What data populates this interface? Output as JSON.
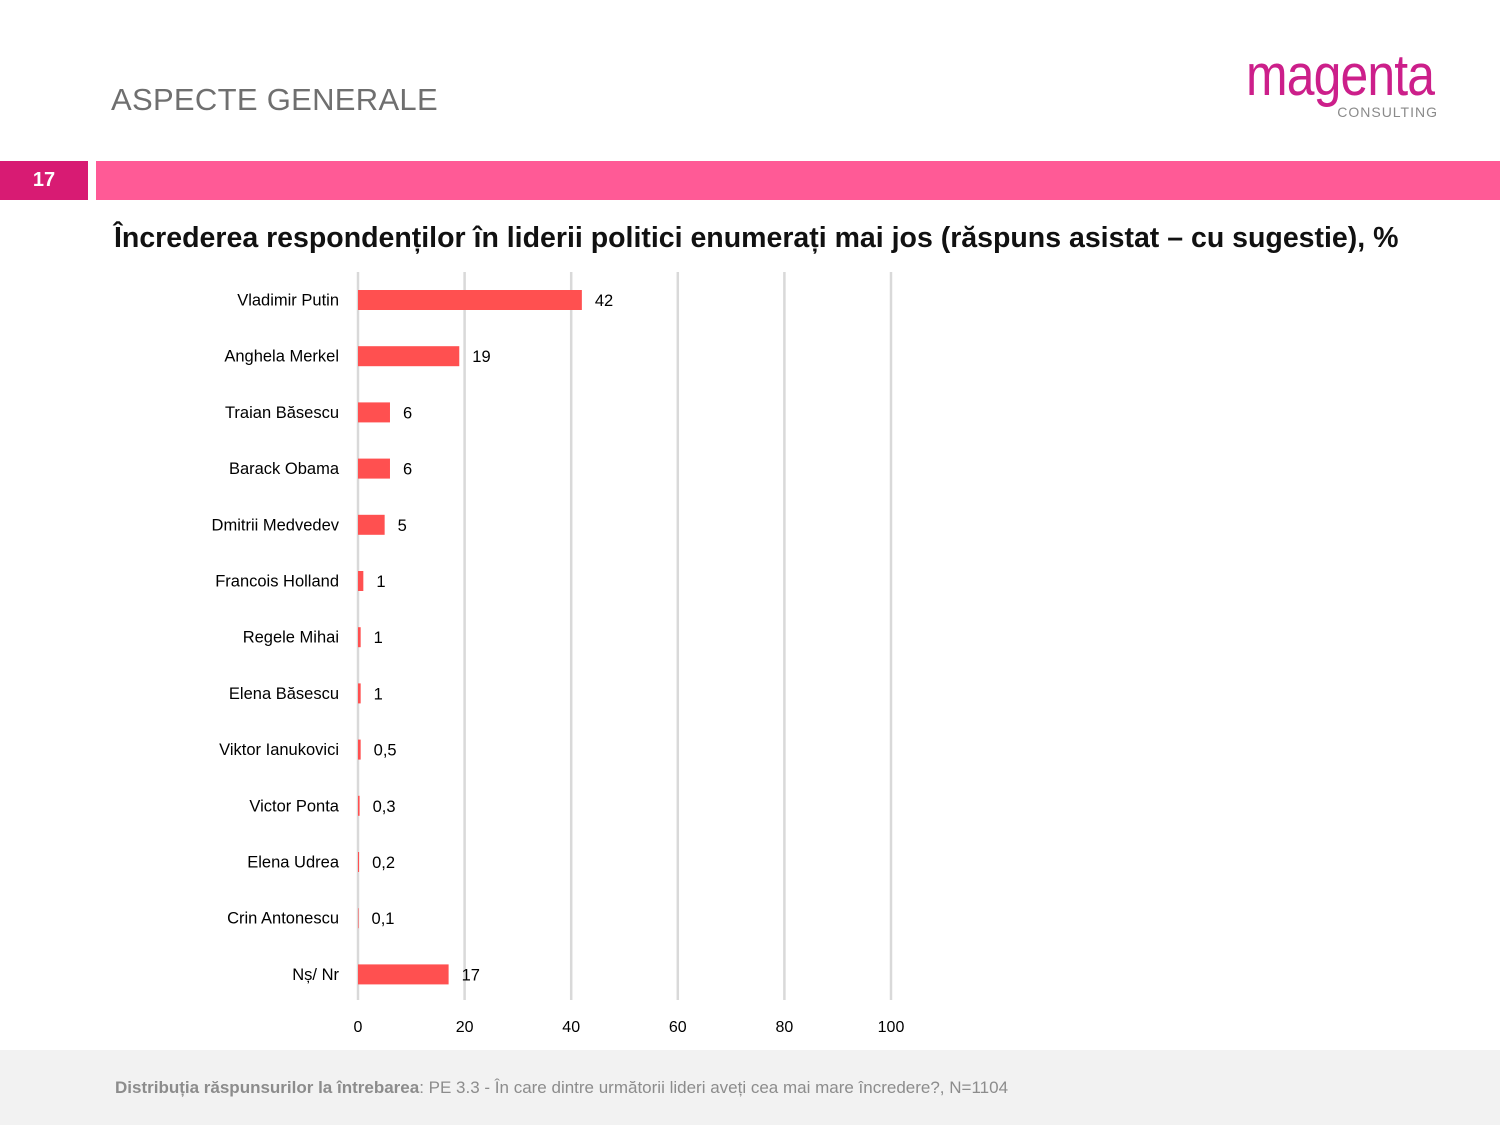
{
  "header": {
    "section_title": "ASPECTE GENERALE",
    "logo_name": "magenta",
    "logo_sub": "CONSULTING",
    "page_number": "17"
  },
  "colors": {
    "bar": "#ff5050",
    "accent": "#ff5a96",
    "page_badge": "#d81b73",
    "logo": "#cc1f8a",
    "grid": "#d9d9d9"
  },
  "chart_data": {
    "type": "bar",
    "orientation": "horizontal",
    "title": "Încrederea respondenților în liderii politici enumerați mai jos (răspuns asistat – cu sugestie), %",
    "categories": [
      "Vladimir Putin",
      "Anghela Merkel",
      "Traian Băsescu",
      "Barack Obama",
      "Dmitrii Medvedev",
      "Francois Holland",
      "Regele Mihai",
      "Elena Băsescu",
      "Viktor Ianukovici",
      "Victor Ponta",
      "Elena Udrea",
      "Crin Antonescu",
      "Nș/ Nr"
    ],
    "values": [
      42,
      19,
      6,
      6,
      5,
      1,
      0.5,
      0.5,
      0.5,
      0.3,
      0.2,
      0.1,
      17
    ],
    "data_labels": [
      "42",
      "19",
      "6",
      "6",
      "5",
      "1",
      "1",
      "1",
      "0,5",
      "0,3",
      "0,2",
      "0,1",
      "17"
    ],
    "xlim": [
      0,
      100
    ],
    "xticks": [
      "0",
      "20",
      "40",
      "60",
      "80",
      "100"
    ],
    "xtick_values": [
      0,
      20,
      40,
      60,
      80,
      100
    ],
    "grid": true,
    "legend": "none"
  },
  "footer": {
    "label": "Distribuția răspunsurilor la întrebarea",
    "text": ": PE 3.3 - În care dintre următorii lideri aveți cea mai mare încredere?, N=1104"
  }
}
